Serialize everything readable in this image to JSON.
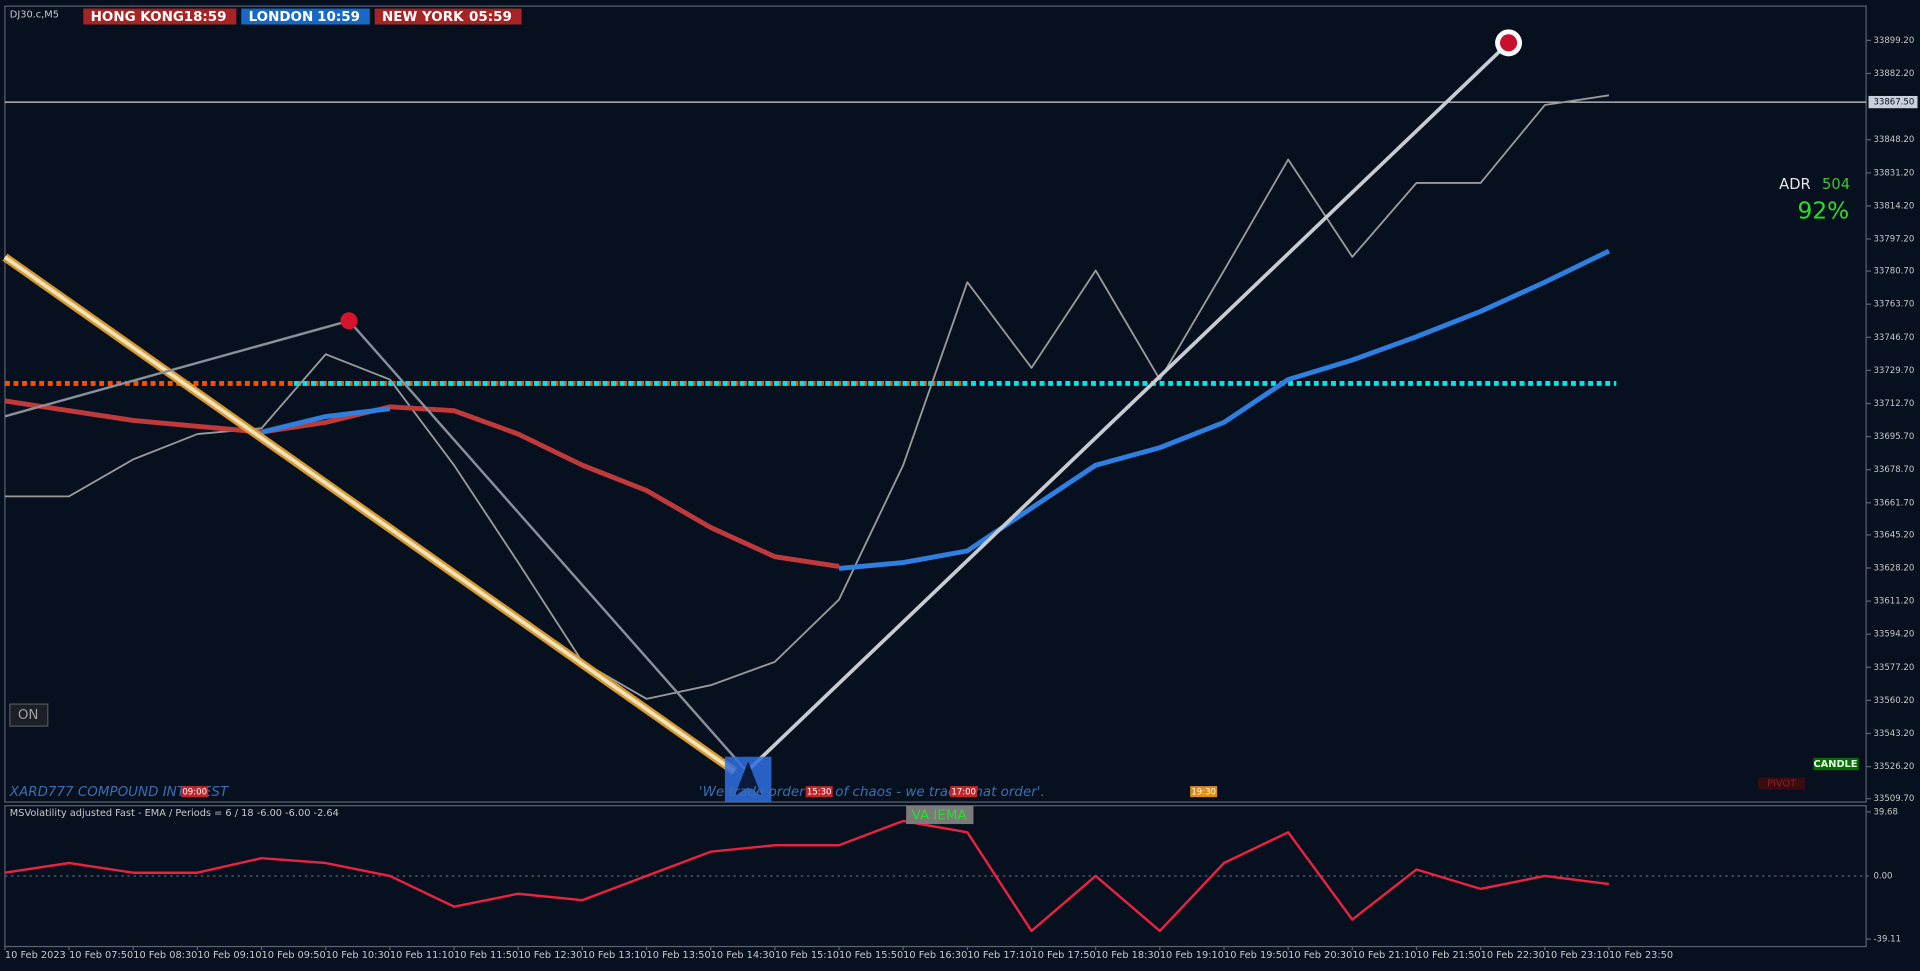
{
  "header": {
    "symbol": "DJ30.c,M5",
    "sessions": [
      {
        "label": "HONG KONG",
        "time": "18:59",
        "color": "#a82424"
      },
      {
        "label": "LONDON",
        "time": "10:59",
        "color": "#1769c4"
      },
      {
        "label": "NEW YORK",
        "time": "05:59",
        "color": "#a82424"
      }
    ],
    "adr_label": "ADR",
    "adr_value": "504",
    "adr_percent": "92%",
    "toggle": "ON",
    "brand": "XARD777 COMPOUND INTEREST",
    "quote": "'We trade order out of chaos - we trade that order'.",
    "session_marks": [
      "09:00",
      "15:30",
      "17:00",
      "19:30"
    ],
    "candle_button": "CANDLE",
    "pivot_button": "PIVOT"
  },
  "chart_data": {
    "type": "line",
    "categories": [
      "10 Feb 2023",
      "10 Feb 07:50",
      "10 Feb 08:30",
      "10 Feb 09:10",
      "10 Feb 09:50",
      "10 Feb 10:30",
      "10 Feb 11:10",
      "10 Feb 11:50",
      "10 Feb 12:30",
      "10 Feb 13:10",
      "10 Feb 13:50",
      "10 Feb 14:30",
      "10 Feb 15:10",
      "10 Feb 15:50",
      "10 Feb 16:30",
      "10 Feb 17:10",
      "10 Feb 17:50",
      "10 Feb 18:30",
      "10 Feb 19:10",
      "10 Feb 19:50",
      "10 Feb 20:30",
      "10 Feb 21:10",
      "10 Feb 21:50",
      "10 Feb 22:30",
      "10 Feb 23:10",
      "10 Feb 23:50"
    ],
    "series": [
      {
        "color": "#9a9a9a",
        "values": [
          33665,
          33665,
          33684,
          33697,
          33700,
          33738,
          33725,
          33681,
          33631,
          33580,
          33561,
          33568,
          33580,
          33612,
          33681,
          33775,
          33731,
          33781,
          33725,
          33781,
          33838,
          33788,
          33826,
          33826,
          33866,
          33871
        ]
      },
      {
        "color": "#c0393b",
        "values": [
          33714,
          33709,
          33704,
          33701,
          33698,
          33703,
          33711,
          33709,
          33697,
          33681,
          33668,
          33649,
          33634,
          33629,
          null,
          null,
          null,
          null,
          null,
          null,
          null,
          null,
          null,
          null,
          null,
          null
        ]
      },
      {
        "color": "#2f7fe0",
        "values": [
          null,
          null,
          null,
          null,
          33698,
          33706,
          33710,
          null,
          null,
          null,
          null,
          null,
          null,
          33628,
          33631,
          33637,
          33659,
          33681,
          33690,
          33703,
          33725,
          33735,
          33747,
          33760,
          33775,
          33791
        ]
      }
    ],
    "levels": [
      {
        "value": 33723,
        "color": "#ff4d00"
      },
      {
        "value": 33723,
        "color": "#00e5e5"
      }
    ],
    "current_price": {
      "value": 33867.5,
      "label": "33867.50"
    },
    "ylim": [
      33508,
      33916.8
    ],
    "yticks": [
      {
        "value": 33899.2,
        "label": "33899.20"
      },
      {
        "value": 33882.2,
        "label": "33882.20"
      },
      {
        "value": 33848.2,
        "label": "33848.20"
      },
      {
        "value": 33831.2,
        "label": "33831.20"
      },
      {
        "value": 33814.2,
        "label": "33814.20"
      },
      {
        "value": 33797.2,
        "label": "33797.20"
      },
      {
        "value": 33780.7,
        "label": "33780.70"
      },
      {
        "value": 33763.7,
        "label": "33763.70"
      },
      {
        "value": 33746.7,
        "label": "33746.70"
      },
      {
        "value": 33729.7,
        "label": "33729.70"
      },
      {
        "value": 33712.7,
        "label": "33712.70"
      },
      {
        "value": 33695.7,
        "label": "33695.70"
      },
      {
        "value": 33678.7,
        "label": "33678.70"
      },
      {
        "value": 33661.7,
        "label": "33661.70"
      },
      {
        "value": 33645.2,
        "label": "33645.20"
      },
      {
        "value": 33628.2,
        "label": "33628.20"
      },
      {
        "value": 33611.2,
        "label": "33611.20"
      },
      {
        "value": 33594.2,
        "label": "33594.20"
      },
      {
        "value": 33577.2,
        "label": "33577.20"
      },
      {
        "value": 33560.2,
        "label": "33560.20"
      },
      {
        "value": 33543.2,
        "label": "33543.20"
      },
      {
        "value": 33526.2,
        "label": "33526.20"
      },
      {
        "value": 33509.7,
        "label": "33509.70"
      }
    ],
    "indicator": {
      "type": "line",
      "title": "MSVolatility adjusted Fast - EMA / Periods = 6 / 18  -6.00 -6.00 -2.64",
      "badge": "VA IEMA",
      "series": [
        {
          "color": "#e8233f",
          "values": [
            2,
            8,
            2,
            2,
            11,
            8,
            0,
            -19,
            -11,
            -15,
            0,
            15,
            19,
            19,
            34,
            27,
            -34,
            0,
            -34,
            8,
            27,
            -27,
            4,
            -8,
            0,
            -5
          ]
        }
      ],
      "ylim": [
        -39.11,
        39.68
      ],
      "yticks": [
        39.68,
        {
          "value": 0,
          "label": "0.00"
        },
        -39.11
      ]
    }
  }
}
